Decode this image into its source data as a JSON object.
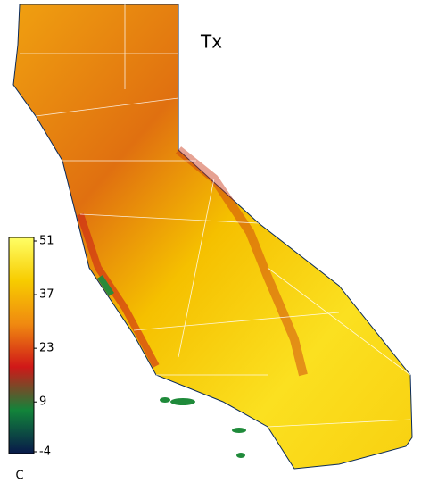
{
  "title": "Tx",
  "colorbar": {
    "lim": [
      -4,
      51
    ],
    "ticks": [
      51,
      37,
      23,
      9,
      -4
    ],
    "unit": "C",
    "colors": [
      "#08184a",
      "#12843a",
      "#d01818",
      "#f08a10",
      "#f7cc00",
      "#ffff66"
    ]
  }
}
